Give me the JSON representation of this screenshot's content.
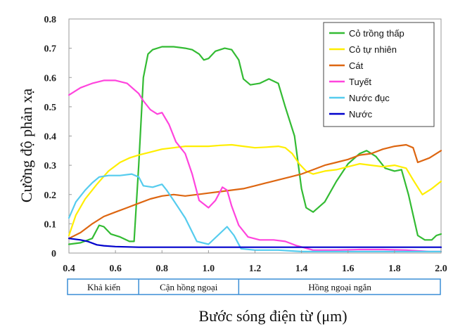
{
  "chart_data": {
    "type": "line",
    "xlabel": "Bước sóng điện từ (μm)",
    "ylabel": "Cường độ phản xạ",
    "xlim": [
      0.4,
      2.0
    ],
    "ylim": [
      0,
      0.8
    ],
    "x_ticks": [
      "0.4",
      "0.6",
      "0.8",
      "1.0",
      "1.2",
      "1.4",
      "1.6",
      "1.8",
      "2.0"
    ],
    "y_ticks": [
      "0",
      "0.1",
      "0.2",
      "0.3",
      "0.4",
      "0.5",
      "0.6",
      "0.7",
      "0.8"
    ],
    "grid": false,
    "legend_position": "top-right",
    "regions": [
      {
        "label": "Khả kiến",
        "from": 0.4,
        "to": 0.7
      },
      {
        "label": "Cận hồng ngoại",
        "from": 0.7,
        "to": 1.13
      },
      {
        "label": "Hồng ngoại ngắn",
        "from": 1.13,
        "to": 2.0
      }
    ],
    "series": [
      {
        "name": "Cỏ trồng thấp",
        "color": "#33bb33",
        "points": [
          [
            0.4,
            0.03
          ],
          [
            0.45,
            0.035
          ],
          [
            0.5,
            0.05
          ],
          [
            0.53,
            0.095
          ],
          [
            0.55,
            0.09
          ],
          [
            0.58,
            0.065
          ],
          [
            0.62,
            0.055
          ],
          [
            0.66,
            0.04
          ],
          [
            0.68,
            0.04
          ],
          [
            0.7,
            0.3
          ],
          [
            0.72,
            0.6
          ],
          [
            0.74,
            0.68
          ],
          [
            0.76,
            0.695
          ],
          [
            0.8,
            0.705
          ],
          [
            0.85,
            0.705
          ],
          [
            0.9,
            0.7
          ],
          [
            0.93,
            0.695
          ],
          [
            0.96,
            0.68
          ],
          [
            0.98,
            0.66
          ],
          [
            1.0,
            0.665
          ],
          [
            1.03,
            0.69
          ],
          [
            1.07,
            0.7
          ],
          [
            1.1,
            0.695
          ],
          [
            1.13,
            0.66
          ],
          [
            1.15,
            0.595
          ],
          [
            1.18,
            0.575
          ],
          [
            1.22,
            0.58
          ],
          [
            1.26,
            0.595
          ],
          [
            1.3,
            0.58
          ],
          [
            1.33,
            0.5
          ],
          [
            1.37,
            0.4
          ],
          [
            1.4,
            0.22
          ],
          [
            1.42,
            0.155
          ],
          [
            1.45,
            0.14
          ],
          [
            1.5,
            0.175
          ],
          [
            1.55,
            0.245
          ],
          [
            1.6,
            0.305
          ],
          [
            1.65,
            0.34
          ],
          [
            1.68,
            0.35
          ],
          [
            1.72,
            0.33
          ],
          [
            1.76,
            0.29
          ],
          [
            1.8,
            0.28
          ],
          [
            1.83,
            0.285
          ],
          [
            1.86,
            0.2
          ],
          [
            1.9,
            0.06
          ],
          [
            1.93,
            0.045
          ],
          [
            1.96,
            0.045
          ],
          [
            1.98,
            0.06
          ],
          [
            2.0,
            0.065
          ]
        ]
      },
      {
        "name": "Cỏ tự nhiên",
        "color": "#ffee00",
        "points": [
          [
            0.4,
            0.06
          ],
          [
            0.43,
            0.13
          ],
          [
            0.47,
            0.185
          ],
          [
            0.52,
            0.235
          ],
          [
            0.57,
            0.28
          ],
          [
            0.62,
            0.31
          ],
          [
            0.66,
            0.325
          ],
          [
            0.7,
            0.335
          ],
          [
            0.75,
            0.345
          ],
          [
            0.8,
            0.355
          ],
          [
            0.85,
            0.36
          ],
          [
            0.9,
            0.365
          ],
          [
            0.95,
            0.365
          ],
          [
            1.0,
            0.365
          ],
          [
            1.05,
            0.368
          ],
          [
            1.1,
            0.37
          ],
          [
            1.15,
            0.365
          ],
          [
            1.2,
            0.36
          ],
          [
            1.25,
            0.362
          ],
          [
            1.3,
            0.365
          ],
          [
            1.33,
            0.36
          ],
          [
            1.36,
            0.34
          ],
          [
            1.39,
            0.305
          ],
          [
            1.42,
            0.28
          ],
          [
            1.45,
            0.27
          ],
          [
            1.5,
            0.28
          ],
          [
            1.55,
            0.285
          ],
          [
            1.6,
            0.295
          ],
          [
            1.65,
            0.305
          ],
          [
            1.7,
            0.3
          ],
          [
            1.75,
            0.295
          ],
          [
            1.8,
            0.3
          ],
          [
            1.85,
            0.29
          ],
          [
            1.88,
            0.25
          ],
          [
            1.92,
            0.2
          ],
          [
            1.96,
            0.22
          ],
          [
            2.0,
            0.245
          ]
        ]
      },
      {
        "name": "Cát",
        "color": "#dd6611",
        "points": [
          [
            0.4,
            0.05
          ],
          [
            0.45,
            0.07
          ],
          [
            0.5,
            0.1
          ],
          [
            0.55,
            0.125
          ],
          [
            0.6,
            0.14
          ],
          [
            0.65,
            0.155
          ],
          [
            0.7,
            0.17
          ],
          [
            0.75,
            0.185
          ],
          [
            0.8,
            0.195
          ],
          [
            0.85,
            0.2
          ],
          [
            0.9,
            0.195
          ],
          [
            0.95,
            0.2
          ],
          [
            1.0,
            0.205
          ],
          [
            1.05,
            0.21
          ],
          [
            1.1,
            0.215
          ],
          [
            1.15,
            0.22
          ],
          [
            1.2,
            0.23
          ],
          [
            1.25,
            0.24
          ],
          [
            1.3,
            0.25
          ],
          [
            1.35,
            0.26
          ],
          [
            1.4,
            0.27
          ],
          [
            1.45,
            0.285
          ],
          [
            1.5,
            0.3
          ],
          [
            1.55,
            0.31
          ],
          [
            1.6,
            0.32
          ],
          [
            1.65,
            0.335
          ],
          [
            1.7,
            0.34
          ],
          [
            1.75,
            0.355
          ],
          [
            1.8,
            0.365
          ],
          [
            1.85,
            0.37
          ],
          [
            1.88,
            0.36
          ],
          [
            1.9,
            0.31
          ],
          [
            1.95,
            0.325
          ],
          [
            2.0,
            0.35
          ]
        ]
      },
      {
        "name": "Tuyết",
        "color": "#ff44dd",
        "points": [
          [
            0.4,
            0.54
          ],
          [
            0.45,
            0.565
          ],
          [
            0.5,
            0.58
          ],
          [
            0.55,
            0.59
          ],
          [
            0.6,
            0.59
          ],
          [
            0.65,
            0.58
          ],
          [
            0.7,
            0.545
          ],
          [
            0.72,
            0.52
          ],
          [
            0.75,
            0.49
          ],
          [
            0.78,
            0.475
          ],
          [
            0.8,
            0.48
          ],
          [
            0.83,
            0.44
          ],
          [
            0.86,
            0.38
          ],
          [
            0.9,
            0.34
          ],
          [
            0.93,
            0.27
          ],
          [
            0.96,
            0.18
          ],
          [
            1.0,
            0.155
          ],
          [
            1.03,
            0.18
          ],
          [
            1.06,
            0.225
          ],
          [
            1.08,
            0.215
          ],
          [
            1.1,
            0.16
          ],
          [
            1.13,
            0.095
          ],
          [
            1.17,
            0.055
          ],
          [
            1.22,
            0.045
          ],
          [
            1.28,
            0.045
          ],
          [
            1.33,
            0.04
          ],
          [
            1.38,
            0.025
          ],
          [
            1.45,
            0.01
          ],
          [
            1.55,
            0.01
          ],
          [
            1.65,
            0.012
          ],
          [
            1.75,
            0.012
          ],
          [
            1.85,
            0.01
          ],
          [
            1.95,
            0.005
          ],
          [
            2.0,
            0.005
          ]
        ]
      },
      {
        "name": "Nước đục",
        "color": "#55ccee",
        "points": [
          [
            0.4,
            0.12
          ],
          [
            0.43,
            0.175
          ],
          [
            0.47,
            0.215
          ],
          [
            0.5,
            0.24
          ],
          [
            0.53,
            0.26
          ],
          [
            0.57,
            0.265
          ],
          [
            0.62,
            0.265
          ],
          [
            0.67,
            0.27
          ],
          [
            0.7,
            0.26
          ],
          [
            0.72,
            0.23
          ],
          [
            0.76,
            0.225
          ],
          [
            0.8,
            0.235
          ],
          [
            0.82,
            0.215
          ],
          [
            0.85,
            0.18
          ],
          [
            0.9,
            0.12
          ],
          [
            0.95,
            0.04
          ],
          [
            1.0,
            0.03
          ],
          [
            1.04,
            0.06
          ],
          [
            1.08,
            0.09
          ],
          [
            1.11,
            0.06
          ],
          [
            1.14,
            0.015
          ],
          [
            1.2,
            0.01
          ],
          [
            1.3,
            0.01
          ],
          [
            1.4,
            0.005
          ],
          [
            1.6,
            0.005
          ],
          [
            1.8,
            0.005
          ],
          [
            2.0,
            0.005
          ]
        ]
      },
      {
        "name": "Nước",
        "color": "#0000cc",
        "points": [
          [
            0.4,
            0.05
          ],
          [
            0.45,
            0.045
          ],
          [
            0.48,
            0.04
          ],
          [
            0.52,
            0.028
          ],
          [
            0.55,
            0.025
          ],
          [
            0.6,
            0.022
          ],
          [
            0.7,
            0.02
          ],
          [
            0.8,
            0.02
          ],
          [
            1.0,
            0.02
          ],
          [
            1.2,
            0.02
          ],
          [
            1.4,
            0.02
          ],
          [
            1.6,
            0.02
          ],
          [
            1.8,
            0.02
          ],
          [
            2.0,
            0.02
          ]
        ]
      }
    ]
  }
}
